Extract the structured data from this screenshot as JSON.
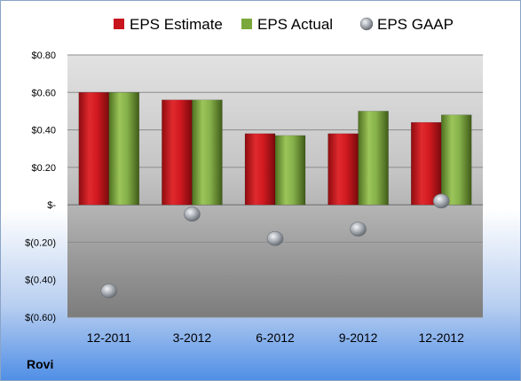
{
  "chart_data": {
    "type": "bar",
    "categories": [
      "12-2011",
      "3-2012",
      "6-2012",
      "9-2012",
      "12-2012"
    ],
    "series": [
      {
        "name": "EPS Estimate",
        "kind": "bar",
        "color": "#c8141c",
        "values": [
          0.6,
          0.56,
          0.38,
          0.38,
          0.44
        ]
      },
      {
        "name": "EPS Actual",
        "kind": "bar",
        "color": "#7aa83a",
        "values": [
          0.6,
          0.56,
          0.37,
          0.5,
          0.48
        ]
      },
      {
        "name": "EPS GAAP",
        "kind": "scatter",
        "color": "#9aa0a8",
        "values": [
          -0.46,
          -0.05,
          -0.18,
          -0.13,
          0.02
        ]
      }
    ],
    "ylim": [
      -0.6,
      0.8
    ],
    "ytick_values": [
      0.8,
      0.6,
      0.4,
      0.2,
      0,
      -0.2,
      -0.4,
      -0.6
    ],
    "ytick_labels": [
      "$0.80",
      "$0.60",
      "$0.40",
      "$0.20",
      "$-",
      "$(0.20)",
      "$(0.40)",
      "$(0.60)"
    ],
    "grid": true,
    "legend_position": "top"
  },
  "company": "Rovi"
}
